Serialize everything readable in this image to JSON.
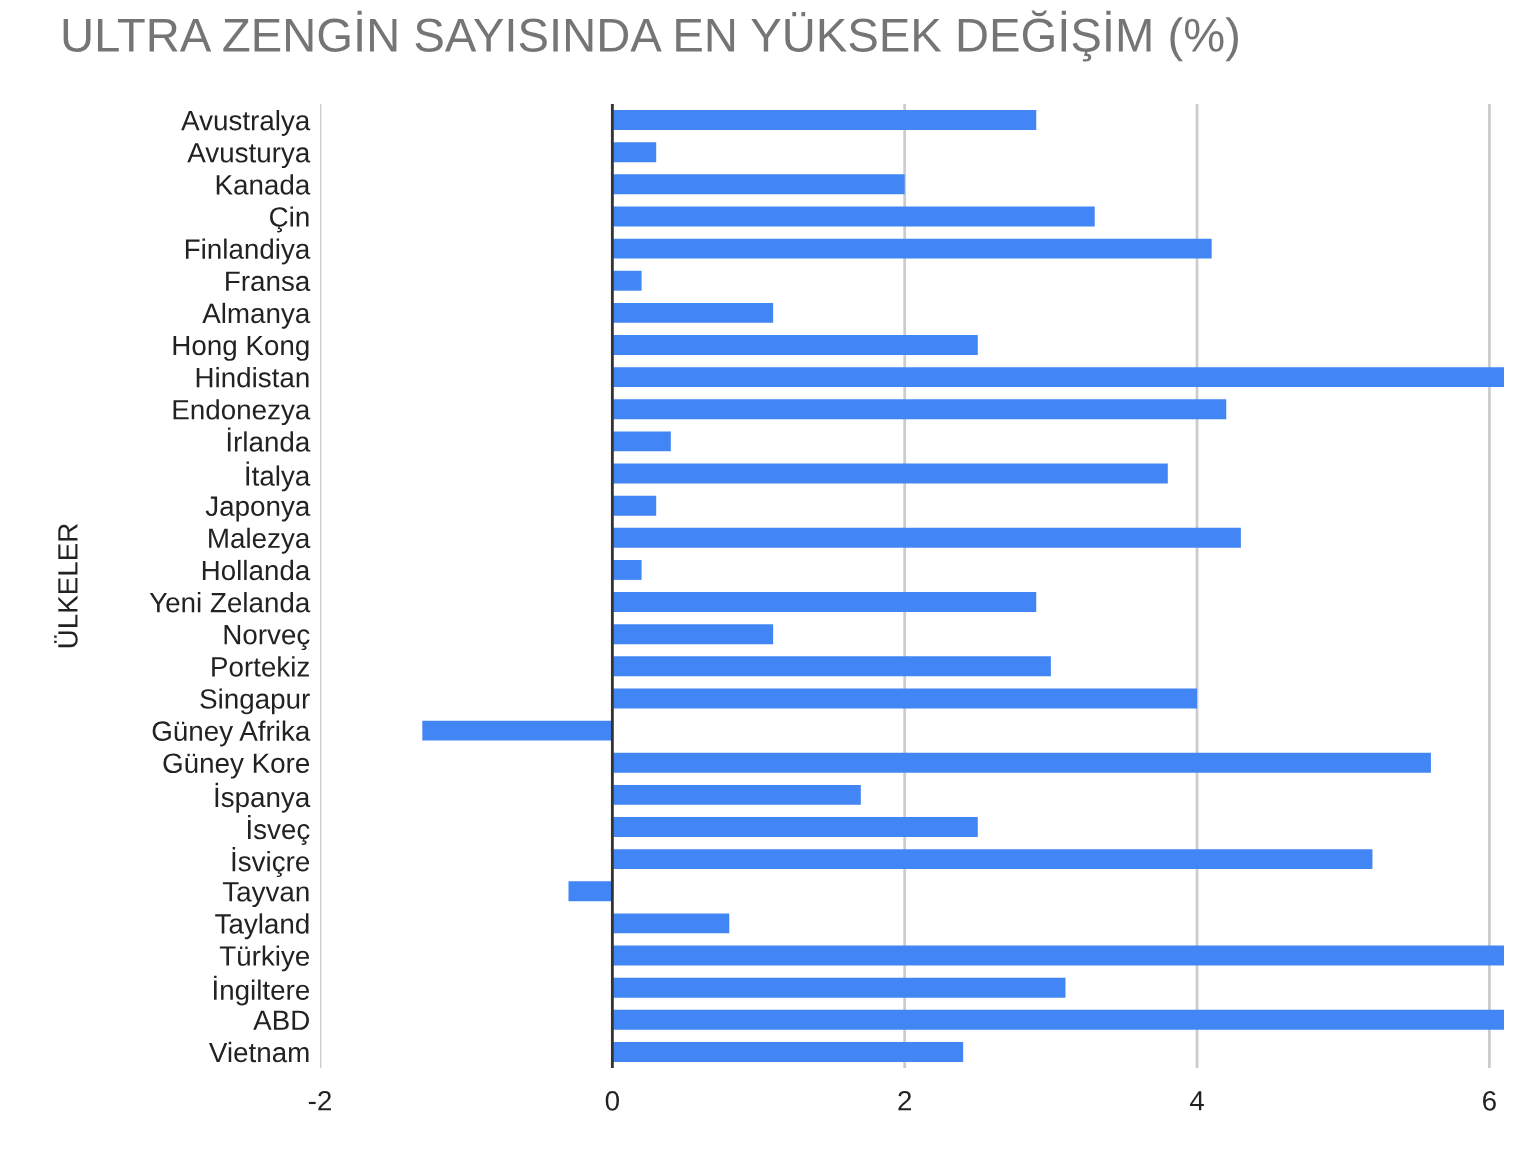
{
  "chart_data": {
    "type": "bar",
    "orientation": "horizontal",
    "title": "ULTRA ZENGİN SAYISINDA EN YÜKSEK DEĞİŞİM (%)",
    "ylabel": "ÜLKELER",
    "categories": [
      "Avustralya",
      "Avusturya",
      "Kanada",
      "Çin",
      "Finlandiya",
      "Fransa",
      "Almanya",
      "Hong Kong",
      "Hindistan",
      "Endonezya",
      "İrlanda",
      "İtalya",
      "Japonya",
      "Malezya",
      "Hollanda",
      "Yeni Zelanda",
      "Norveç",
      "Portekiz",
      "Singapur",
      "Güney Afrika",
      "Güney Kore",
      "İspanya",
      "İsveç",
      "İsviçre",
      "Tayvan",
      "Tayland",
      "Türkiye",
      "İngiltere",
      "ABD",
      "Vietnam"
    ],
    "values": [
      2.9,
      0.3,
      2.0,
      3.3,
      4.1,
      0.2,
      1.1,
      2.5,
      6.1,
      4.2,
      0.4,
      3.8,
      0.3,
      4.3,
      0.2,
      2.9,
      1.1,
      3.0,
      4.0,
      -1.3,
      5.6,
      1.7,
      2.5,
      5.2,
      -0.3,
      0.8,
      6.1,
      3.1,
      6.1,
      2.4
    ],
    "color": "#4285f4",
    "xlim": [
      -2,
      6.1
    ],
    "xticks": [
      -2,
      0,
      2,
      4,
      6
    ],
    "grid": "x"
  }
}
